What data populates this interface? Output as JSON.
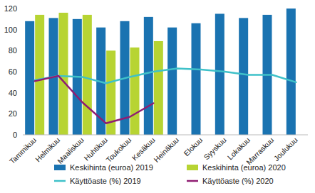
{
  "chart_data": {
    "type": "bar",
    "categories": [
      "Tammikuu",
      "Helmikuu",
      "Maaliskuu",
      "Huhtikuu",
      "Toukokuu",
      "Kesäkuu",
      "Heinäkuu",
      "Elokuu",
      "Syyskuu",
      "Lokakuu",
      "Marraskuu",
      "Joulukuu"
    ],
    "series": [
      {
        "name": "Keskihinta (euroa) 2019",
        "type": "bar",
        "color": "#1a73b1",
        "values": [
          108,
          111,
          110,
          102,
          108,
          112,
          102,
          106,
          115,
          111,
          114,
          120
        ]
      },
      {
        "name": "Keskihinta (euroa) 2020",
        "type": "bar",
        "color": "#b7d433",
        "values": [
          114,
          116,
          114,
          80,
          83,
          89,
          null,
          null,
          null,
          null,
          null,
          null
        ]
      },
      {
        "name": "Käyttöaste (%) 2019",
        "type": "line",
        "color": "#3fc1c9",
        "values": [
          52,
          56,
          55,
          49,
          55,
          60,
          63,
          62,
          60,
          57,
          57,
          50
        ]
      },
      {
        "name": "Käyttöaste (%) 2020",
        "type": "line",
        "color": "#8f1d72",
        "values": [
          51,
          56,
          31,
          11,
          17,
          30,
          null,
          null,
          null,
          null,
          null,
          null
        ]
      }
    ],
    "ylim": [
      0,
      120
    ],
    "yticks": [
      0,
      20,
      40,
      60,
      80,
      100,
      120
    ],
    "grid": false,
    "legend": "bottom"
  }
}
